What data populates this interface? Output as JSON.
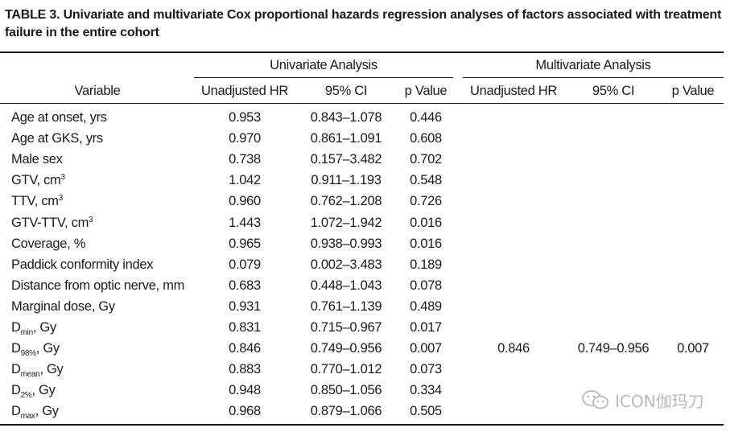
{
  "caption": "TABLE 3. Univariate and multivariate Cox proportional hazards regression analyses of factors associated with treatment failure in the entire cohort",
  "groups": {
    "univariate": "Univariate Analysis",
    "multivariate": "Multivariate Analysis"
  },
  "columns": {
    "variable": "Variable",
    "hr": "Unadjusted HR",
    "ci": "95% CI",
    "p": "p Value"
  },
  "rows": [
    {
      "label": "Age at onset, yrs",
      "sub": "",
      "sup": "",
      "suffix": "",
      "uhr": "0.953",
      "uci": "0.843–1.078",
      "up": "0.446",
      "mhr": "",
      "mci": "",
      "mp": ""
    },
    {
      "label": "Age at GKS, yrs",
      "sub": "",
      "sup": "",
      "suffix": "",
      "uhr": "0.970",
      "uci": "0.861–1.091",
      "up": "0.608",
      "mhr": "",
      "mci": "",
      "mp": ""
    },
    {
      "label": "Male sex",
      "sub": "",
      "sup": "",
      "suffix": "",
      "uhr": "0.738",
      "uci": "0.157–3.482",
      "up": "0.702",
      "mhr": "",
      "mci": "",
      "mp": ""
    },
    {
      "label": "GTV, cm",
      "sub": "",
      "sup": "3",
      "suffix": "",
      "uhr": "1.042",
      "uci": "0.911–1.193",
      "up": "0.548",
      "mhr": "",
      "mci": "",
      "mp": ""
    },
    {
      "label": "TTV, cm",
      "sub": "",
      "sup": "3",
      "suffix": "",
      "uhr": "0.960",
      "uci": "0.762–1.208",
      "up": "0.726",
      "mhr": "",
      "mci": "",
      "mp": ""
    },
    {
      "label": "GTV-TTV, cm",
      "sub": "",
      "sup": "3",
      "suffix": "",
      "uhr": "1.443",
      "uci": "1.072–1.942",
      "up": "0.016",
      "mhr": "",
      "mci": "",
      "mp": ""
    },
    {
      "label": "Coverage, %",
      "sub": "",
      "sup": "",
      "suffix": "",
      "uhr": "0.965",
      "uci": "0.938–0.993",
      "up": "0.016",
      "mhr": "",
      "mci": "",
      "mp": ""
    },
    {
      "label": "Paddick conformity index",
      "sub": "",
      "sup": "",
      "suffix": "",
      "uhr": "0.079",
      "uci": "0.002–3.483",
      "up": "0.189",
      "mhr": "",
      "mci": "",
      "mp": ""
    },
    {
      "label": "Distance from optic nerve, mm",
      "sub": "",
      "sup": "",
      "suffix": "",
      "uhr": "0.683",
      "uci": "0.448–1.043",
      "up": "0.078",
      "mhr": "",
      "mci": "",
      "mp": ""
    },
    {
      "label": "Marginal dose, Gy",
      "sub": "",
      "sup": "",
      "suffix": "",
      "uhr": "0.931",
      "uci": "0.761–1.139",
      "up": "0.489",
      "mhr": "",
      "mci": "",
      "mp": ""
    },
    {
      "label": "D",
      "sub": "min",
      "sup": "",
      "suffix": ", Gy",
      "uhr": "0.831",
      "uci": "0.715–0.967",
      "up": "0.017",
      "mhr": "",
      "mci": "",
      "mp": ""
    },
    {
      "label": "D",
      "sub": "98%",
      "sup": "",
      "suffix": ", Gy",
      "uhr": "0.846",
      "uci": "0.749–0.956",
      "up": "0.007",
      "mhr": "0.846",
      "mci": "0.749–0.956",
      "mp": "0.007"
    },
    {
      "label": "D",
      "sub": "mean",
      "sup": "",
      "suffix": ", Gy",
      "uhr": "0.883",
      "uci": "0.770–1.012",
      "up": "0.073",
      "mhr": "",
      "mci": "",
      "mp": ""
    },
    {
      "label": "D",
      "sub": "2%",
      "sup": "",
      "suffix": ", Gy",
      "uhr": "0.948",
      "uci": "0.850–1.056",
      "up": "0.334",
      "mhr": "",
      "mci": "",
      "mp": ""
    },
    {
      "label": "D",
      "sub": "max",
      "sup": "",
      "suffix": ", Gy",
      "uhr": "0.968",
      "uci": "0.879–1.066",
      "up": "0.505",
      "mhr": "",
      "mci": "",
      "mp": ""
    }
  ],
  "watermark": {
    "icon": "wechat-icon",
    "text": "ICON伽玛刀"
  }
}
